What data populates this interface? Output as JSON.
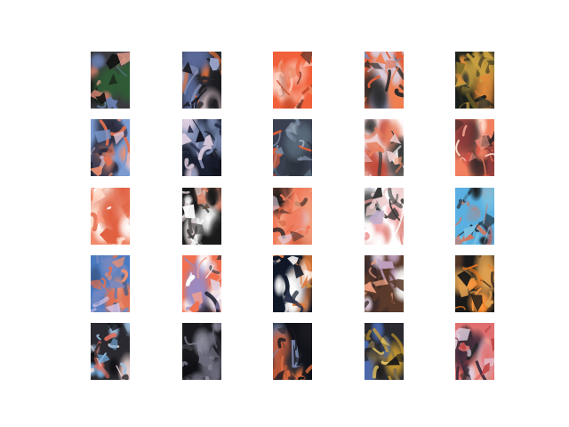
{
  "figure": {
    "rows": 5,
    "cols": 5,
    "background": "#ffffff",
    "tiles": [
      {
        "row": 0,
        "col": 0,
        "palette": [
          "#3a3a40",
          "#c77b6a",
          "#6b7fb0",
          "#2f5a35",
          "#e9a08f",
          "#151515"
        ]
      },
      {
        "row": 0,
        "col": 1,
        "palette": [
          "#2a2a30",
          "#e0703a",
          "#9aa3c9",
          "#1a1a1f",
          "#d9c2c7",
          "#5a6a9a"
        ]
      },
      {
        "row": 0,
        "col": 2,
        "palette": [
          "#f0603a",
          "#e88560",
          "#ffd0c0",
          "#cc4a2a",
          "#f9b09a",
          "#7a3a2a"
        ]
      },
      {
        "row": 0,
        "col": 3,
        "palette": [
          "#e0603a",
          "#7a8ab0",
          "#c9b0c0",
          "#f08050",
          "#2a2a2a",
          "#d9d0e0"
        ]
      },
      {
        "row": 0,
        "col": 4,
        "palette": [
          "#1a1e1a",
          "#7a6a2a",
          "#c9a040",
          "#3a3a30",
          "#e08a3a",
          "#2a2a20"
        ]
      },
      {
        "row": 1,
        "col": 0,
        "palette": [
          "#7a9ad0",
          "#e07050",
          "#d9c0d0",
          "#3a3a50",
          "#f09070",
          "#2a2a3a"
        ]
      },
      {
        "row": 1,
        "col": 1,
        "palette": [
          "#1a2030",
          "#a0a8d0",
          "#2a3048",
          "#e0d0e0",
          "#101018",
          "#7a8ab0"
        ]
      },
      {
        "row": 1,
        "col": 2,
        "palette": [
          "#3a4050",
          "#7a8aa0",
          "#e0603a",
          "#2a3038",
          "#a0b0c0",
          "#5a6a7a"
        ]
      },
      {
        "row": 1,
        "col": 3,
        "palette": [
          "#f0d0d0",
          "#e88060",
          "#ffffff",
          "#3a3a3a",
          "#f0a080",
          "#c04a3a"
        ]
      },
      {
        "row": 1,
        "col": 4,
        "palette": [
          "#f08060",
          "#e05a4a",
          "#ffe0d0",
          "#3a2a2a",
          "#f0a090",
          "#8a3a3a"
        ]
      },
      {
        "row": 2,
        "col": 0,
        "palette": [
          "#f08a6a",
          "#ff9a80",
          "#ffe0d0",
          "#e06040",
          "#f0c0b0",
          "#ffffff"
        ]
      },
      {
        "row": 2,
        "col": 1,
        "palette": [
          "#1a1a1a",
          "#e08a70",
          "#3a3a3a",
          "#d0c0c0",
          "#5a4a3a",
          "#ffffff"
        ]
      },
      {
        "row": 2,
        "col": 2,
        "palette": [
          "#f07a5a",
          "#3a2a2a",
          "#f0a080",
          "#e0d0e0",
          "#1a1a1a",
          "#d06040"
        ]
      },
      {
        "row": 2,
        "col": 3,
        "palette": [
          "#ffffff",
          "#f0d0d0",
          "#e08a80",
          "#c0b0d0",
          "#3a3a3a",
          "#f0a0a0"
        ]
      },
      {
        "row": 2,
        "col": 4,
        "palette": [
          "#5ab0e0",
          "#2a3a4a",
          "#e07050",
          "#7ac0e0",
          "#1a1a1a",
          "#c04a3a"
        ]
      },
      {
        "row": 3,
        "col": 0,
        "palette": [
          "#4a7ac0",
          "#e07050",
          "#d0c0e0",
          "#3a5a8a",
          "#f09070",
          "#7a8ac0"
        ]
      },
      {
        "row": 3,
        "col": 1,
        "palette": [
          "#f07050",
          "#e0d0e0",
          "#2a2a3a",
          "#f0a090",
          "#9a8ac0",
          "#ffffff"
        ]
      },
      {
        "row": 3,
        "col": 2,
        "palette": [
          "#101828",
          "#ffffff",
          "#e0a040",
          "#2a3048",
          "#f0d0c0",
          "#e07a3a"
        ]
      },
      {
        "row": 3,
        "col": 3,
        "palette": [
          "#5a3a2a",
          "#e0d0e0",
          "#c0a0c0",
          "#f0a080",
          "#3a2a2a",
          "#ffffff"
        ]
      },
      {
        "row": 3,
        "col": 4,
        "palette": [
          "#1a1a1a",
          "#f07a20",
          "#e0a050",
          "#2a2020",
          "#ff9a40",
          "#5a3a2a"
        ]
      },
      {
        "row": 4,
        "col": 0,
        "palette": [
          "#2a2a30",
          "#7ab0e0",
          "#e0d0d0",
          "#e07060",
          "#101014",
          "#a0c0e0"
        ]
      },
      {
        "row": 4,
        "col": 1,
        "palette": [
          "#1a1a1e",
          "#2a2a30",
          "#6a6a7a",
          "#3a3a40",
          "#8a8a9a",
          "#0e0e12"
        ]
      },
      {
        "row": 4,
        "col": 2,
        "palette": [
          "#101218",
          "#e07040",
          "#2a2a30",
          "#7a8ab0",
          "#1a1a20",
          "#c05a3a"
        ]
      },
      {
        "row": 4,
        "col": 3,
        "palette": [
          "#2a2a30",
          "#d0a030",
          "#4a6ab0",
          "#e0c060",
          "#1a1a1a",
          "#7a6a4a"
        ]
      },
      {
        "row": 4,
        "col": 4,
        "palette": [
          "#e07070",
          "#c04a4a",
          "#f0a090",
          "#3a2a3a",
          "#e0d0e0",
          "#2a2a2a"
        ]
      }
    ]
  }
}
